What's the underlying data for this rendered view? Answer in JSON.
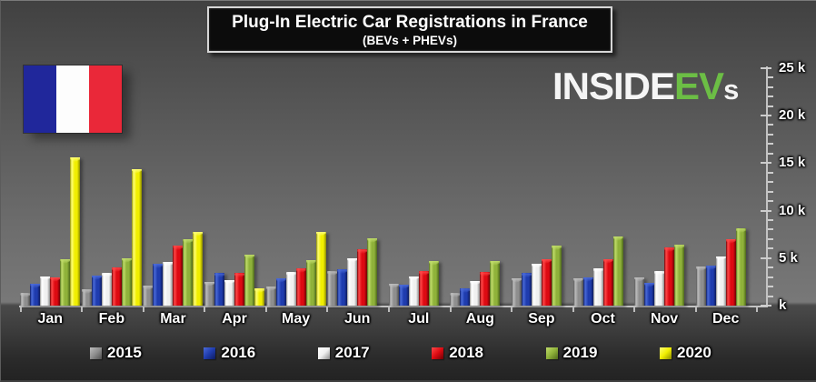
{
  "chart_data": {
    "type": "bar",
    "title": "Plug-In Electric Car Registrations in France",
    "subtitle": "(BEVs + PHEVs)",
    "categories": [
      "Jan",
      "Feb",
      "Mar",
      "Apr",
      "May",
      "Jun",
      "Jul",
      "Aug",
      "Sep",
      "Oct",
      "Nov",
      "Dec"
    ],
    "unit_note": "values in thousands (k), read from axis",
    "ylim": [
      0,
      25
    ],
    "grid": false,
    "legend_position": "bottom",
    "axis_side": "right",
    "yticks": [
      {
        "value": 25,
        "label": "25 k"
      },
      {
        "value": 20,
        "label": "20 k"
      },
      {
        "value": 15,
        "label": "15 k"
      },
      {
        "value": 10,
        "label": "10 k"
      },
      {
        "value": 5,
        "label": "5 k"
      },
      {
        "value": 0,
        "label": "k"
      }
    ],
    "series": [
      {
        "name": "2015",
        "color": "#8e8e8e",
        "light": "#bdbdbd",
        "dark": "#4e4e4e",
        "values": [
          1.3,
          1.7,
          2.1,
          2.5,
          2.0,
          3.6,
          2.3,
          1.3,
          2.9,
          2.9,
          3.0,
          4.1
        ]
      },
      {
        "name": "2016",
        "color": "#1f3cae",
        "light": "#4a6ad8",
        "dark": "#0d1b5e",
        "values": [
          2.3,
          3.2,
          4.4,
          3.4,
          2.9,
          3.8,
          2.2,
          1.8,
          3.4,
          3.0,
          2.4,
          4.2
        ]
      },
      {
        "name": "2017",
        "color": "#f0f0f0",
        "light": "#ffffff",
        "dark": "#8d8d8d",
        "values": [
          3.1,
          3.4,
          4.6,
          2.7,
          3.5,
          5.0,
          3.1,
          2.6,
          4.4,
          3.9,
          3.6,
          5.2
        ]
      },
      {
        "name": "2018",
        "color": "#dd0a12",
        "light": "#ff4848",
        "dark": "#6e0004",
        "values": [
          3.0,
          4.0,
          6.3,
          3.4,
          3.9,
          5.9,
          3.6,
          3.5,
          4.9,
          4.9,
          6.1,
          7.0
        ]
      },
      {
        "name": "2019",
        "color": "#8fb23a",
        "light": "#c0dc6a",
        "dark": "#4d681a",
        "values": [
          4.9,
          5.0,
          7.0,
          5.4,
          4.8,
          7.1,
          4.7,
          4.7,
          6.3,
          7.3,
          6.4,
          8.1
        ]
      },
      {
        "name": "2020",
        "color": "#f0ee00",
        "light": "#ffff75",
        "dark": "#8a8a00",
        "values": [
          15.6,
          14.4,
          7.8,
          1.8,
          7.8,
          null,
          null,
          null,
          null,
          null,
          null,
          null
        ]
      }
    ]
  },
  "logo": {
    "text_primary_1": "INSIDE",
    "text_accent": "EV",
    "text_primary_2": "s",
    "accent_color": "#6cbe45",
    "primary_color": "#f5f5f5"
  },
  "flag": {
    "label": "flag-of-france",
    "colors": [
      "#20279b",
      "#fdfdfd",
      "#ea2839"
    ]
  }
}
